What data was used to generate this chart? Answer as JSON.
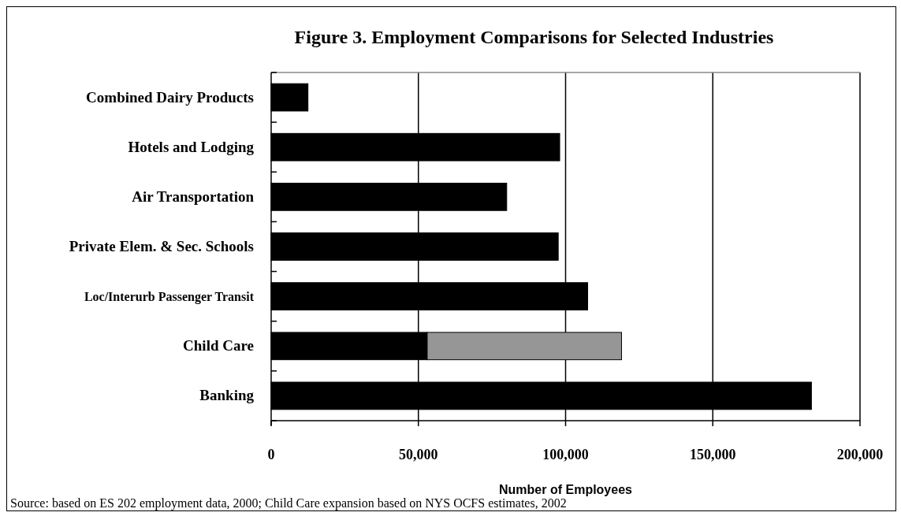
{
  "chart_data": {
    "type": "bar",
    "orientation": "horizontal",
    "stacked": true,
    "title": "Figure 3. Employment Comparisons for Selected Industries",
    "xlabel": "Number of Employees",
    "categories": [
      "Combined Dairy Products",
      "Hotels and Lodging",
      "Air Transportation",
      "Private Elem. & Sec. Schools",
      "Loc/Interurb Passenger Transit",
      "Child Care",
      "Banking"
    ],
    "series": [
      {
        "color": "#000000",
        "values": [
          12500,
          98000,
          80000,
          97500,
          107500,
          53000,
          183500
        ]
      },
      {
        "color": "#969696",
        "values": [
          null,
          null,
          null,
          null,
          null,
          66000,
          null
        ]
      }
    ],
    "xlim": [
      0,
      200000
    ],
    "xticks": [
      {
        "value": 0,
        "label": "0"
      },
      {
        "value": 50000,
        "label": "50,000"
      },
      {
        "value": 100000,
        "label": "100,000"
      },
      {
        "value": 150000,
        "label": "150,000"
      },
      {
        "value": 200000,
        "label": "200,000"
      }
    ],
    "grid": "x",
    "annotations": [
      "Source: based on ES 202 employment data, 2000; Child Care expansion based on NYS OCFS estimates, 2002"
    ]
  }
}
